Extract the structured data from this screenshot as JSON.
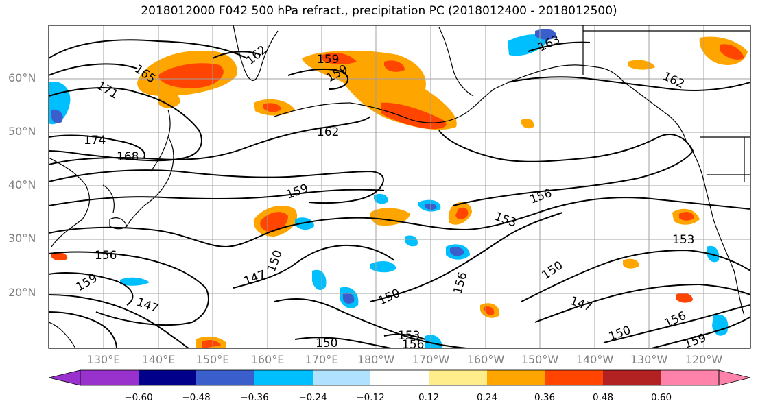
{
  "title": "2018012000 F042 500 hPa refract., precipitation PC (2018012400 - 2018012500)",
  "lat_labels": [
    "60°N",
    "50°N",
    "40°N",
    "30°N",
    "20°N"
  ],
  "lon_labels": [
    "130°E",
    "140°E",
    "150°E",
    "160°E",
    "170°E",
    "180°W",
    "170°W",
    "160°W",
    "150°W",
    "140°W",
    "130°W",
    "120°W"
  ],
  "colorbar": {
    "colors": [
      "#9932CC",
      "#00008B",
      "#3A5FCD",
      "#00BFFF",
      "#B0E2FF",
      "#FFFFFF",
      "#FFEC8B",
      "#FFA500",
      "#FF4500",
      "#B22222",
      "#FF82AB"
    ],
    "tick_labels": [
      "−0.60",
      "−0.48",
      "−0.36",
      "−0.24",
      "−0.12",
      "0.12",
      "0.24",
      "0.36",
      "0.48",
      "0.60"
    ]
  },
  "contour_labels": [
    "165",
    "162",
    "159",
    "159",
    "163",
    "162",
    "171",
    "174",
    "168",
    "162",
    "159",
    "156",
    "153",
    "153",
    "156",
    "159",
    "147",
    "150",
    "147",
    "150",
    "150",
    "147",
    "156",
    "150",
    "153",
    "156",
    "150",
    "159",
    "156"
  ],
  "colors": {
    "land_outline": "#000000",
    "grid": "#a0a0a0",
    "contour": "#000000"
  }
}
